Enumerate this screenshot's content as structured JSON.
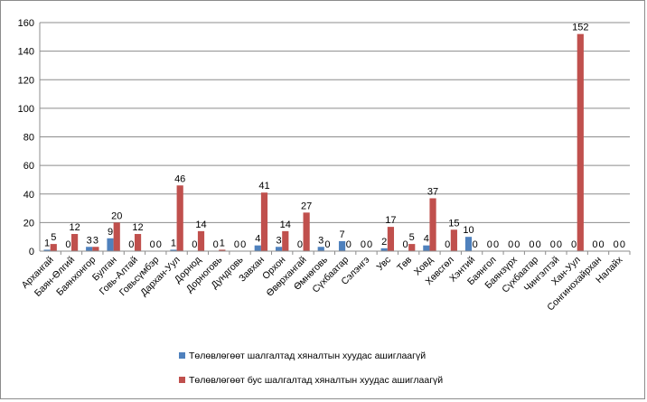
{
  "chart_data": {
    "type": "bar",
    "title": "",
    "xlabel": "",
    "ylabel": "",
    "ylim": [
      0,
      160
    ],
    "yticks": [
      0,
      20,
      40,
      60,
      80,
      100,
      120,
      140,
      160
    ],
    "grid": true,
    "legend_position": "bottom",
    "categories": [
      "Архангай",
      "Баян-Өлгий",
      "Баянхонгор",
      "Булган",
      "Говь-Алтай",
      "Говьсүмбэр",
      "Дархан-Уул",
      "Дорнод",
      "Дорноговь",
      "Дундговь",
      "Завхан",
      "Орхон",
      "Өвөрхангай",
      "Өмнөговь",
      "Сүхбаатар",
      "Сэлэнгэ",
      "Увс",
      "Төв",
      "Ховд",
      "Хөвсгөл",
      "Хэнтий",
      "Баянгол",
      "Баянзүрх",
      "Сүхбаатар",
      "Чингэлтэй",
      "Хан-Уул",
      "Сонгинохайрхан",
      "Налайх"
    ],
    "series": [
      {
        "name": "Төлөвлөгөөт шалгалтад хяналтын хуудас ашиглаагүй",
        "color": "#4f81bd",
        "values": [
          1,
          0,
          3,
          9,
          0,
          0,
          1,
          0,
          0,
          0,
          4,
          3,
          0,
          3,
          7,
          0,
          2,
          0,
          4,
          0,
          10,
          0,
          0,
          0,
          0,
          0,
          0,
          0
        ]
      },
      {
        "name": "Төлөвлөгөөт бус шалгалтад хяналтын хуудас ашиглаагүй",
        "color": "#c0504d",
        "values": [
          5,
          12,
          3,
          20,
          12,
          0,
          46,
          14,
          1,
          0,
          41,
          14,
          27,
          0,
          0,
          0,
          17,
          5,
          37,
          15,
          0,
          0,
          0,
          0,
          0,
          152,
          0,
          0
        ]
      }
    ]
  }
}
